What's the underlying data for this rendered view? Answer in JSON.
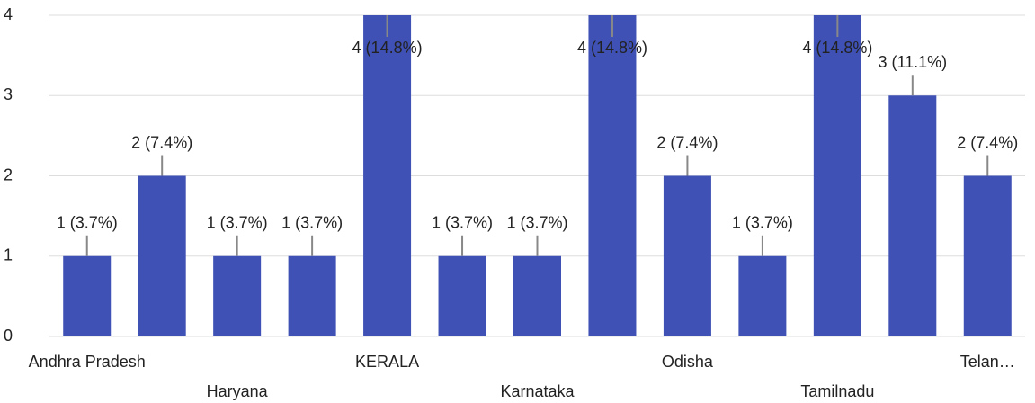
{
  "chart_data": {
    "type": "bar",
    "categories": [
      "Andhra Pradesh",
      null,
      "Haryana",
      null,
      "KERALA",
      null,
      "Karnataka",
      null,
      "Odisha",
      null,
      "Tamilnadu",
      null,
      "Telan…"
    ],
    "values": [
      1,
      2,
      1,
      1,
      4,
      1,
      1,
      4,
      2,
      1,
      4,
      3,
      2
    ],
    "value_labels": [
      "1 (3.7%)",
      "2 (7.4%)",
      "1 (3.7%)",
      "1 (3.7%)",
      "4 (14.8%)",
      "1 (3.7%)",
      "1 (3.7%)",
      "4 (14.8%)",
      "2 (7.4%)",
      "1 (3.7%)",
      "4 (14.8%)",
      "3 (11.1%)",
      "2 (7.4%)"
    ],
    "color": "#3f51b5",
    "ylim": [
      0,
      4
    ],
    "yticks": [
      0,
      1,
      2,
      3,
      4
    ],
    "grid": true
  }
}
